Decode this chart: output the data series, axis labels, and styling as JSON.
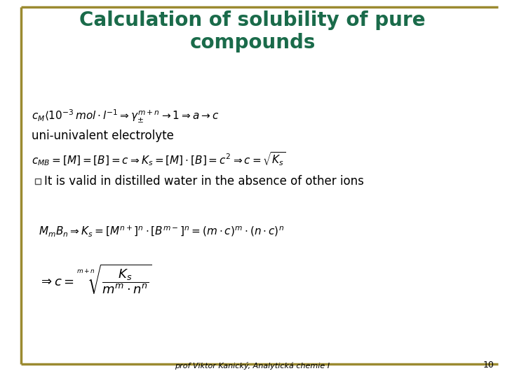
{
  "background_color": "#ffffff",
  "border_color": "#9B8A30",
  "title": "Calculation of solubility of pure\ncompounds",
  "title_color": "#1a6b4a",
  "title_fontsize": 20,
  "footer_text": "prof Viktor Kanický, Analytická chemie I",
  "footer_page": "10",
  "footer_fontsize": 8,
  "eq1": "$c_M \\langle 10^{-3}\\,mol \\cdot l^{-1} \\Rightarrow \\gamma_{\\pm}^{m+n} \\rightarrow 1 \\Rightarrow a \\rightarrow c$",
  "label_uni": "uni-univalent electrolyte",
  "eq2": "$c_{MB} = [M] = [B] = c \\Rightarrow K_s = [M]\\cdot[B] = c^2 \\Rightarrow c = \\sqrt{K_s}$",
  "bullet_text": "It is valid in distilled water in the absence of other ions",
  "eq3": "$M_m B_n \\Rightarrow K_s = \\left[M^{n+}\\right]^n \\cdot \\left[B^{m-}\\right]^n = (m \\cdot c)^m \\cdot (n \\cdot c)^n$",
  "eq4": "$\\Rightarrow c = \\sqrt[m+n]{\\dfrac{K_s}{m^m \\cdot n^n}}$",
  "text_color": "#000000",
  "eq_fontsize": 11,
  "label_fontsize": 12
}
